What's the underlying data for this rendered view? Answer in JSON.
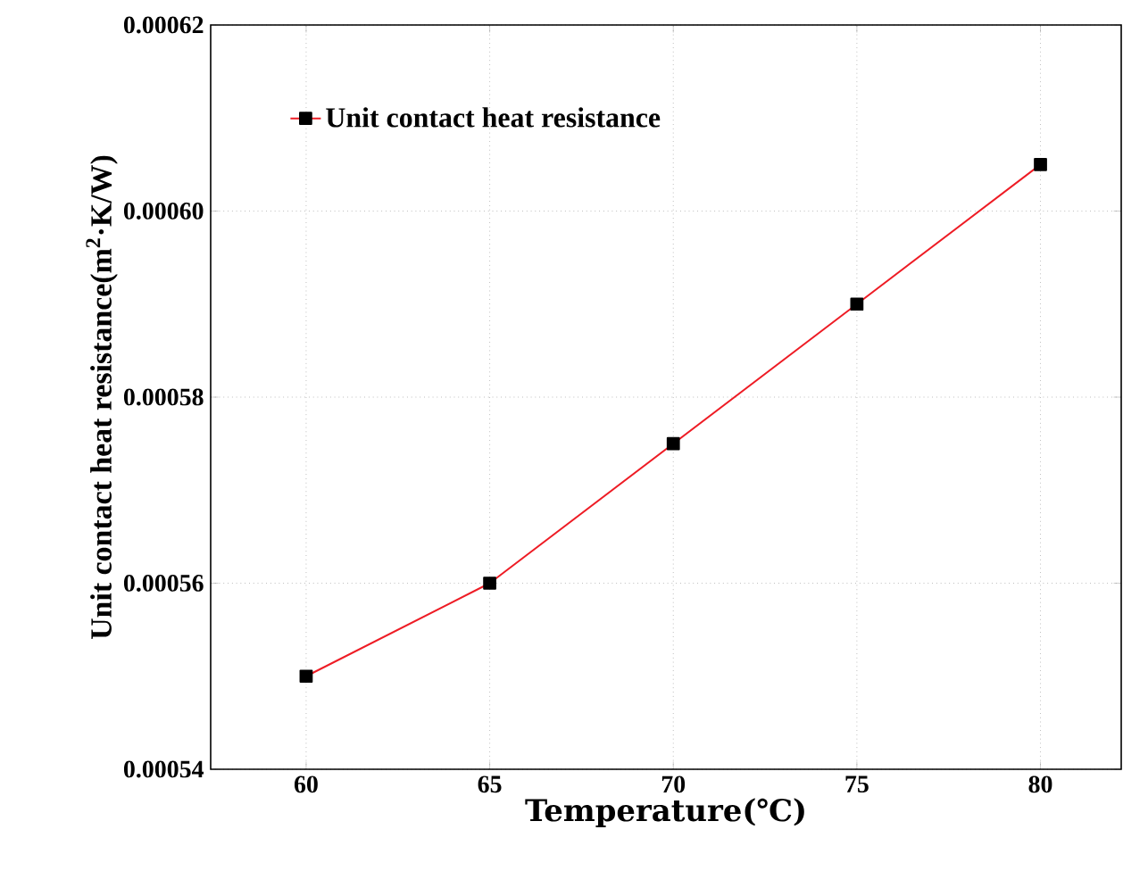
{
  "chart_data": {
    "type": "line",
    "xlabel": "Temperature(℃)",
    "ylabel": "Unit contact heat resistance(m$^{2}$·K/W)",
    "x": [
      60,
      65,
      70,
      75,
      80
    ],
    "series": [
      {
        "name": "Unit contact heat resistance",
        "color": "#ee1c25",
        "values": [
          0.00055,
          0.00056,
          0.000575,
          0.00059,
          0.000605
        ]
      }
    ],
    "xlim": [
      57.4,
      82.2
    ],
    "ylim": [
      0.00054,
      0.00062
    ],
    "xticks": [
      60,
      65,
      70,
      75,
      80
    ],
    "yticks": [
      0.00054,
      0.00056,
      0.00058,
      {
        "value": 0.0006,
        "label": "0.00060"
      },
      0.00062
    ],
    "grid": true,
    "legend": "top left",
    "marker": "square",
    "line_style": "solid"
  }
}
